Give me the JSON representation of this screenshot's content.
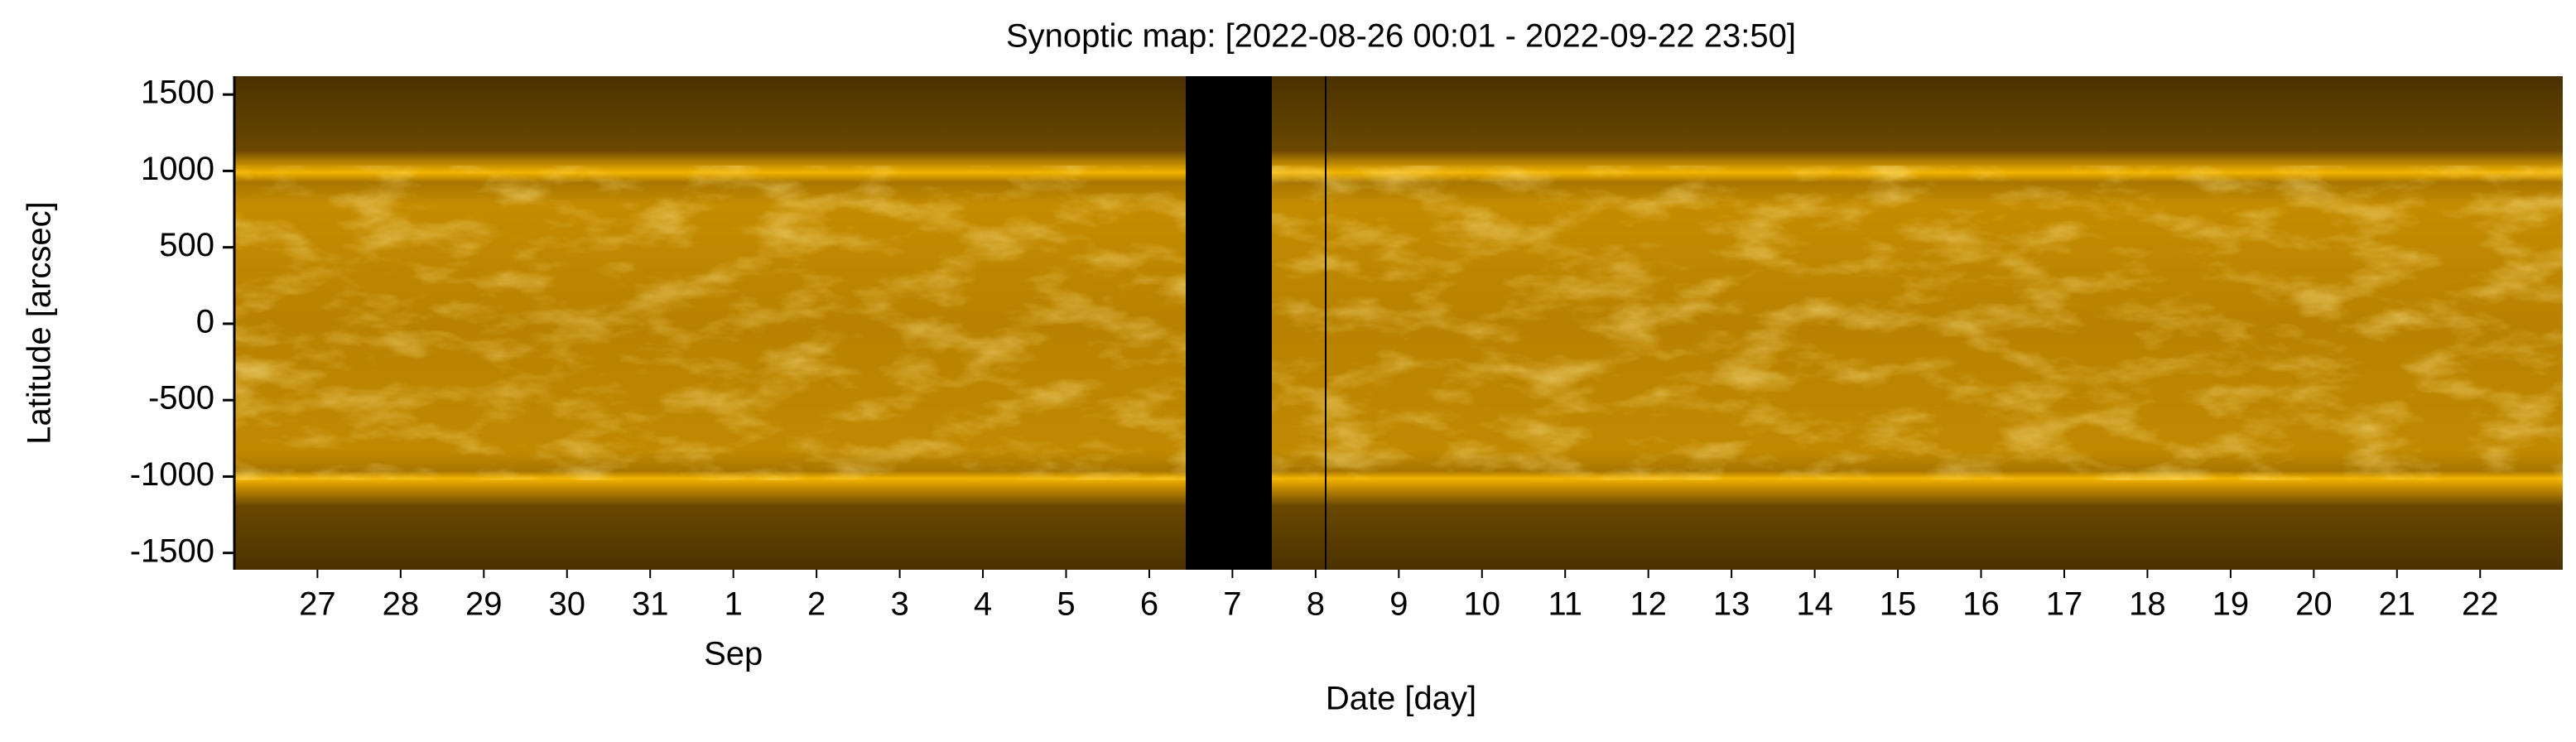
{
  "chart_data": {
    "type": "heatmap",
    "title": "Synoptic map: [2022-08-26 00:01 - 2022-09-22 23:50]",
    "x_label": "Date [day]",
    "y_label": "Latitude [arcsec]",
    "xlim": [
      "2022-08-26 00:01",
      "2022-09-22 23:50"
    ],
    "xticks": [
      {
        "value": "2022-08-27",
        "label": "27"
      },
      {
        "value": "2022-08-28",
        "label": "28"
      },
      {
        "value": "2022-08-29",
        "label": "29"
      },
      {
        "value": "2022-08-30",
        "label": "30"
      },
      {
        "value": "2022-08-31",
        "label": "31"
      },
      {
        "value": "2022-09-01",
        "label": "1"
      },
      {
        "value": "2022-09-02",
        "label": "2"
      },
      {
        "value": "2022-09-03",
        "label": "3"
      },
      {
        "value": "2022-09-04",
        "label": "4"
      },
      {
        "value": "2022-09-05",
        "label": "5"
      },
      {
        "value": "2022-09-06",
        "label": "6"
      },
      {
        "value": "2022-09-07",
        "label": "7"
      },
      {
        "value": "2022-09-08",
        "label": "8"
      },
      {
        "value": "2022-09-09",
        "label": "9"
      },
      {
        "value": "2022-09-10",
        "label": "10"
      },
      {
        "value": "2022-09-11",
        "label": "11"
      },
      {
        "value": "2022-09-12",
        "label": "12"
      },
      {
        "value": "2022-09-13",
        "label": "13"
      },
      {
        "value": "2022-09-14",
        "label": "14"
      },
      {
        "value": "2022-09-15",
        "label": "15"
      },
      {
        "value": "2022-09-16",
        "label": "16"
      },
      {
        "value": "2022-09-17",
        "label": "17"
      },
      {
        "value": "2022-09-18",
        "label": "18"
      },
      {
        "value": "2022-09-19",
        "label": "19"
      },
      {
        "value": "2022-09-20",
        "label": "20"
      },
      {
        "value": "2022-09-21",
        "label": "21"
      },
      {
        "value": "2022-09-22",
        "label": "22"
      }
    ],
    "x_month_labels": [
      {
        "value": "2022-09-01",
        "label": "Sep"
      }
    ],
    "ylim": [
      -1610,
      1620
    ],
    "yticks": [
      -1500,
      -1000,
      -500,
      0,
      500,
      1000,
      1500
    ]
  }
}
